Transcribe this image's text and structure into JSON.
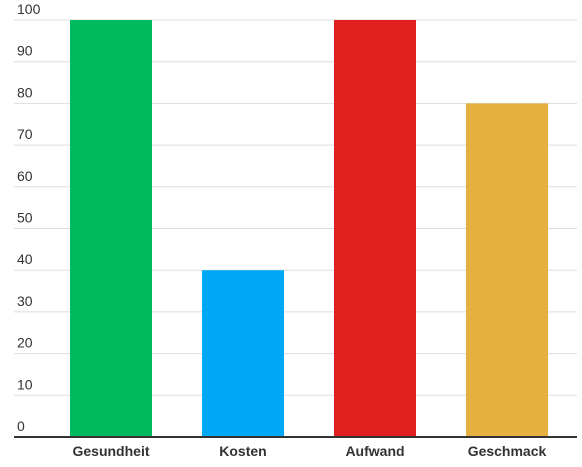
{
  "chart_data": {
    "type": "bar",
    "categories": [
      "Gesundheit",
      "Kosten",
      "Aufwand",
      "Geschmack"
    ],
    "values": [
      100,
      40,
      100,
      80
    ],
    "colors": [
      "#00bb5e",
      "#00a8f5",
      "#e0201e",
      "#e5b03f"
    ],
    "ylim": [
      0,
      100
    ],
    "yticks": [
      0,
      10,
      20,
      30,
      40,
      50,
      60,
      70,
      80,
      90,
      100
    ],
    "grid": true
  }
}
